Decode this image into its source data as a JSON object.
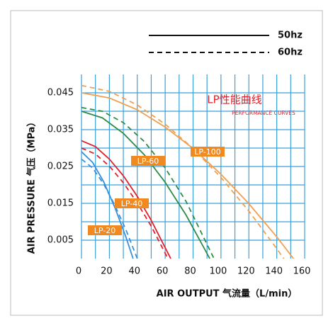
{
  "chart_data": {
    "type": "line",
    "title": "LP性能曲线",
    "subtitle": "PERFORMANCE CURVES",
    "x_label": "AIR OUTPUT  气流量（L/min）",
    "y_label": "AIR PRESSURE  气压（MPa）",
    "xlim": [
      0,
      160
    ],
    "ylim": [
      0,
      0.05
    ],
    "xticks": [
      0,
      20,
      40,
      60,
      80,
      100,
      120,
      140,
      160
    ],
    "yticks": [
      0.005,
      0.015,
      0.025,
      0.035,
      0.045
    ],
    "x_grid": [
      10,
      30,
      50,
      70,
      90,
      110,
      130,
      150
    ],
    "y_grid": [
      0.01,
      0.02,
      0.03,
      0.04
    ],
    "grid": true,
    "line_styles": [
      {
        "label": "50hz",
        "dash": "none"
      },
      {
        "label": "60hz",
        "dash": "7 5"
      }
    ],
    "series": [
      {
        "name": "LP-100",
        "color": "#f0a050",
        "lines": [
          {
            "style": 0,
            "x": [
              0,
              20,
              40,
              60,
              80,
              100,
              120,
              140,
              152
            ],
            "values": [
              0.045,
              0.0436,
              0.0404,
              0.0357,
              0.0299,
              0.0229,
              0.0149,
              0.0059,
              0
            ]
          },
          {
            "style": 1,
            "x": [
              0,
              20,
              40,
              60,
              80,
              100,
              120,
              140,
              145
            ],
            "values": [
              0.047,
              0.0454,
              0.0417,
              0.0365,
              0.0299,
              0.022,
              0.0129,
              0.0027,
              0
            ]
          }
        ]
      },
      {
        "name": "LP-60",
        "color": "#2e8b45",
        "lines": [
          {
            "style": 0,
            "x": [
              0,
              15,
              30,
              45,
              60,
              75,
              92
            ],
            "values": [
              0.04,
              0.0382,
              0.034,
              0.0282,
              0.0207,
              0.0118,
              0
            ]
          },
          {
            "style": 1,
            "x": [
              0,
              15,
              30,
              45,
              60,
              75,
              95
            ],
            "values": [
              0.041,
              0.04,
              0.0369,
              0.0318,
              0.0246,
              0.0155,
              0
            ]
          }
        ]
      },
      {
        "name": "LP-40",
        "color": "#e0202a",
        "lines": [
          {
            "style": 0,
            "x": [
              0,
              10,
              20,
              30,
              40,
              50,
              64
            ],
            "values": [
              0.032,
              0.0304,
              0.027,
              0.0225,
              0.0169,
              0.0104,
              0
            ]
          },
          {
            "style": 1,
            "x": [
              0,
              10,
              20,
              30,
              40,
              50,
              62
            ],
            "values": [
              0.03,
              0.0284,
              0.0251,
              0.0206,
              0.0151,
              0.0088,
              0
            ]
          }
        ]
      },
      {
        "name": "LP-20",
        "color": "#3a8fd8",
        "lines": [
          {
            "style": 0,
            "x": [
              0,
              8,
              16,
              24,
              32,
              37
            ],
            "values": [
              0.029,
              0.0261,
              0.0208,
              0.0138,
              0.0057,
              0
            ]
          },
          {
            "style": 1,
            "x": [
              0,
              8,
              16,
              24,
              32,
              40
            ],
            "values": [
              0.027,
              0.0246,
              0.0202,
              0.0144,
              0.0077,
              0
            ]
          }
        ]
      }
    ]
  }
}
